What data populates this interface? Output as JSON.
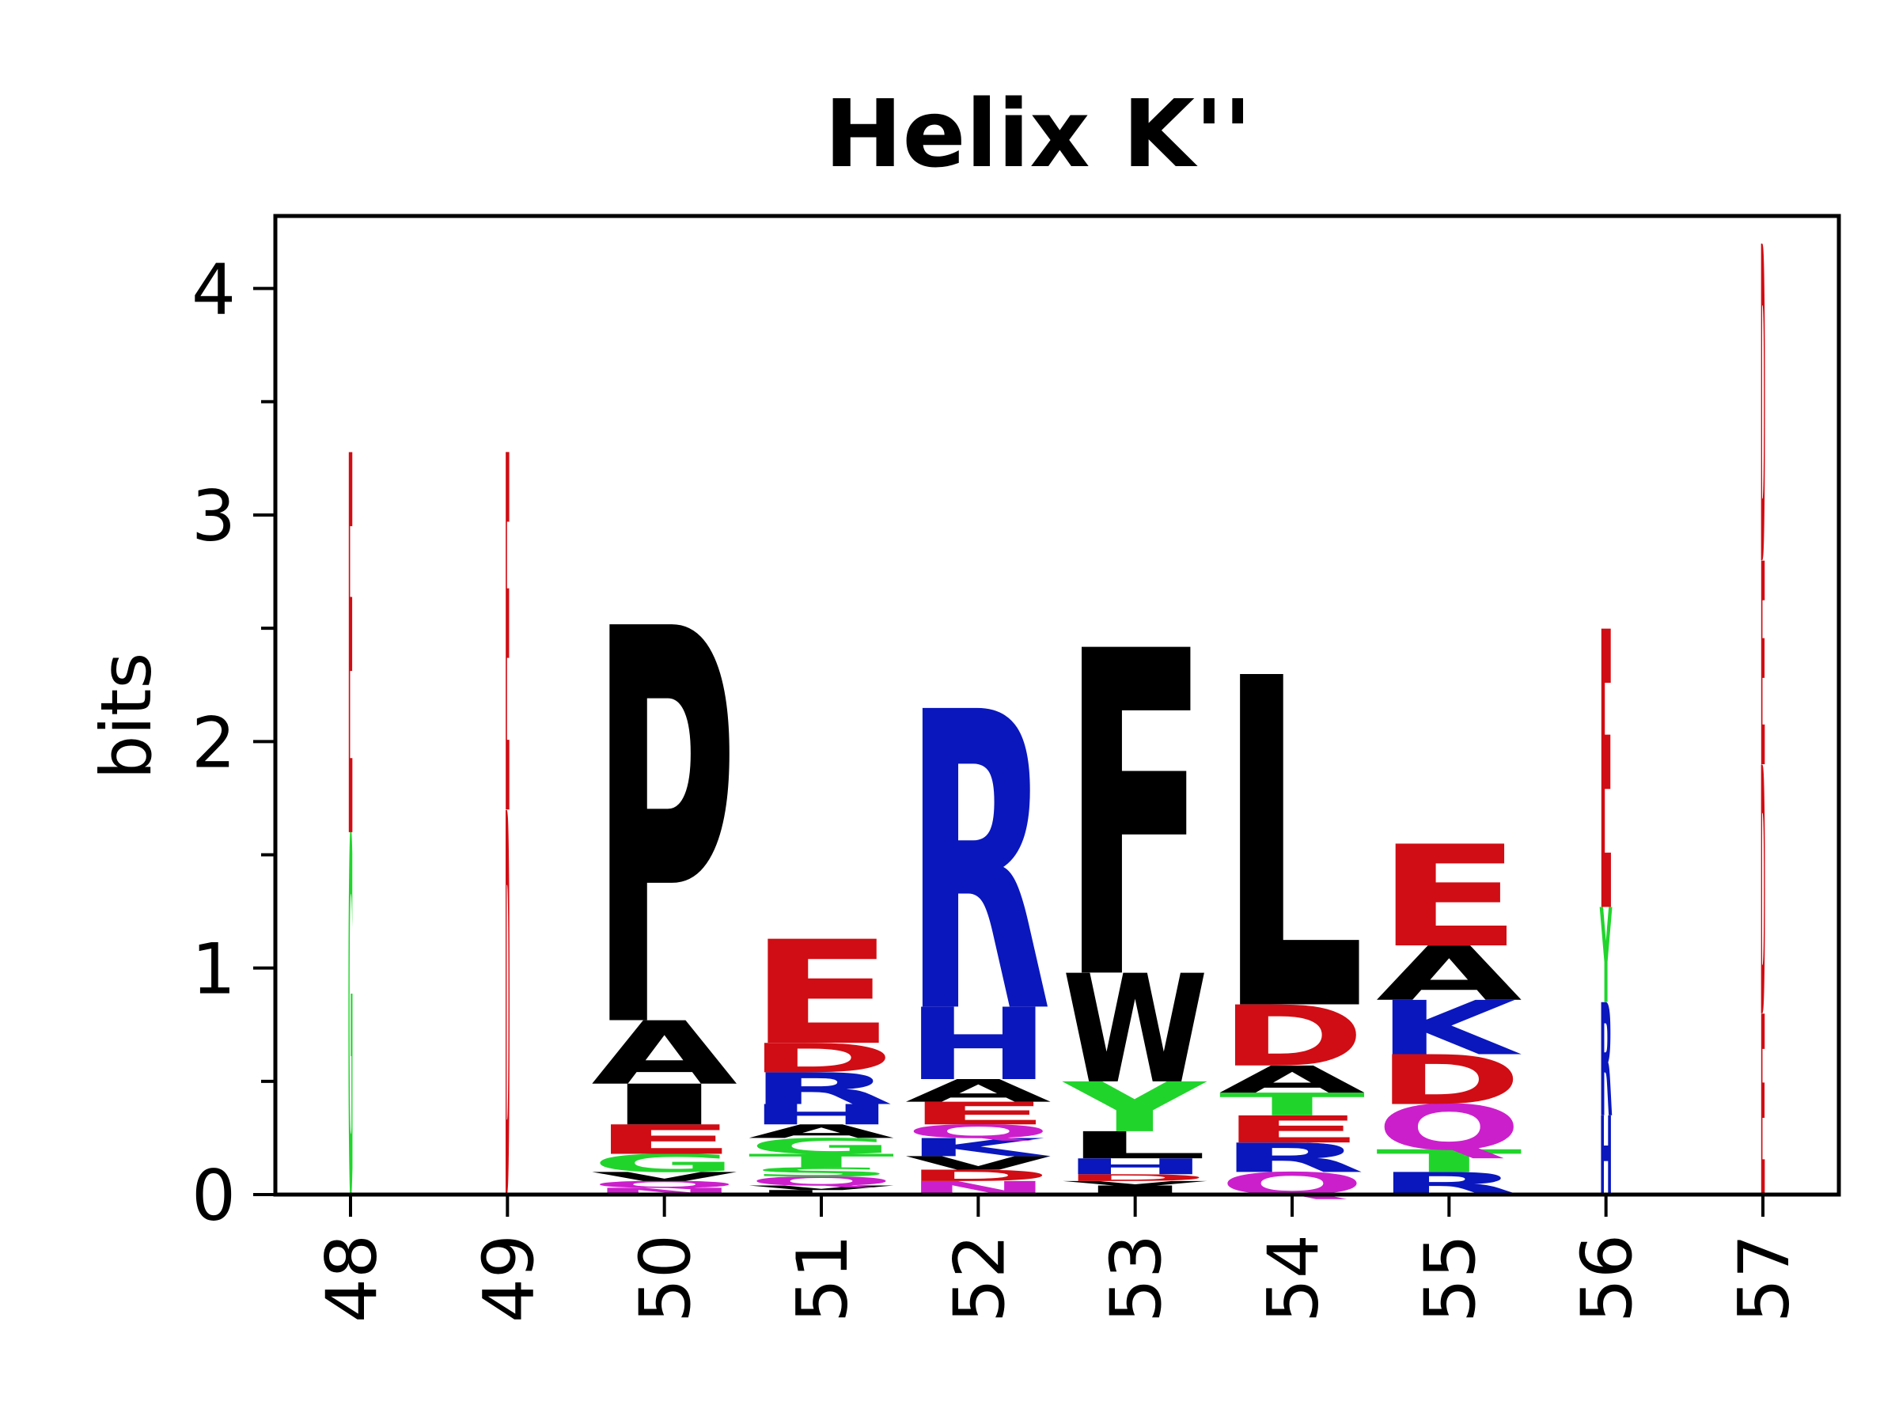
{
  "chart_data": {
    "type": "sequence-logo",
    "title": "Helix K''",
    "ylabel": "bits",
    "xlabel": "",
    "ylim": [
      0,
      4.32
    ],
    "yticks": [
      "0",
      "1",
      "2",
      "3",
      "4"
    ],
    "grid": false,
    "color_scheme": {
      "hydrophobic": "#000000",
      "acidic": "#d00d14",
      "basic": "#0a17bd",
      "polar": "#21d42c",
      "amide": "#cc1fcc"
    },
    "positions": [
      {
        "label": "48",
        "letters": [
          {
            "aa": "G",
            "color": "#21d42c",
            "bits": 1.6
          },
          {
            "aa": "E",
            "color": "#d00d14",
            "bits": 1.68
          }
        ]
      },
      {
        "label": "49",
        "letters": [
          {
            "aa": "D",
            "color": "#d00d14",
            "bits": 1.7
          },
          {
            "aa": "E",
            "color": "#d00d14",
            "bits": 1.58
          }
        ]
      },
      {
        "label": "50",
        "letters": [
          {
            "aa": "N",
            "color": "#cc1fcc",
            "bits": 0.03
          },
          {
            "aa": "Q",
            "color": "#cc1fcc",
            "bits": 0.03
          },
          {
            "aa": "V",
            "color": "#000000",
            "bits": 0.04
          },
          {
            "aa": "G",
            "color": "#21d42c",
            "bits": 0.08
          },
          {
            "aa": "E",
            "color": "#d00d14",
            "bits": 0.13
          },
          {
            "aa": "I",
            "color": "#000000",
            "bits": 0.18
          },
          {
            "aa": "A",
            "color": "#000000",
            "bits": 0.28
          },
          {
            "aa": "P",
            "color": "#000000",
            "bits": 1.75
          }
        ]
      },
      {
        "label": "51",
        "letters": [
          {
            "aa": "L",
            "color": "#000000",
            "bits": 0.02
          },
          {
            "aa": "V",
            "color": "#000000",
            "bits": 0.02
          },
          {
            "aa": "Q",
            "color": "#cc1fcc",
            "bits": 0.04
          },
          {
            "aa": "S",
            "color": "#21d42c",
            "bits": 0.04
          },
          {
            "aa": "T",
            "color": "#21d42c",
            "bits": 0.06
          },
          {
            "aa": "G",
            "color": "#21d42c",
            "bits": 0.07
          },
          {
            "aa": "A",
            "color": "#000000",
            "bits": 0.06
          },
          {
            "aa": "H",
            "color": "#0a17bd",
            "bits": 0.09
          },
          {
            "aa": "R",
            "color": "#0a17bd",
            "bits": 0.14
          },
          {
            "aa": "D",
            "color": "#d00d14",
            "bits": 0.13
          },
          {
            "aa": "E",
            "color": "#d00d14",
            "bits": 0.46
          }
        ]
      },
      {
        "label": "52",
        "letters": [
          {
            "aa": "N",
            "color": "#cc1fcc",
            "bits": 0.06
          },
          {
            "aa": "D",
            "color": "#d00d14",
            "bits": 0.05
          },
          {
            "aa": "V",
            "color": "#000000",
            "bits": 0.06
          },
          {
            "aa": "K",
            "color": "#0a17bd",
            "bits": 0.08
          },
          {
            "aa": "Q",
            "color": "#cc1fcc",
            "bits": 0.06
          },
          {
            "aa": "E",
            "color": "#d00d14",
            "bits": 0.1
          },
          {
            "aa": "A",
            "color": "#000000",
            "bits": 0.1
          },
          {
            "aa": "H",
            "color": "#0a17bd",
            "bits": 0.32
          },
          {
            "aa": "R",
            "color": "#0a17bd",
            "bits": 1.32
          }
        ]
      },
      {
        "label": "53",
        "letters": [
          {
            "aa": "I",
            "color": "#000000",
            "bits": 0.04
          },
          {
            "aa": "V",
            "color": "#000000",
            "bits": 0.02
          },
          {
            "aa": "D",
            "color": "#d00d14",
            "bits": 0.03
          },
          {
            "aa": "H",
            "color": "#0a17bd",
            "bits": 0.07
          },
          {
            "aa": "L",
            "color": "#000000",
            "bits": 0.12
          },
          {
            "aa": "Y",
            "color": "#21d42c",
            "bits": 0.22
          },
          {
            "aa": "W",
            "color": "#000000",
            "bits": 0.48
          },
          {
            "aa": "F",
            "color": "#000000",
            "bits": 1.44
          }
        ]
      },
      {
        "label": "54",
        "letters": [
          {
            "aa": "Q",
            "color": "#cc1fcc",
            "bits": 0.1
          },
          {
            "aa": "R",
            "color": "#0a17bd",
            "bits": 0.13
          },
          {
            "aa": "E",
            "color": "#d00d14",
            "bits": 0.12
          },
          {
            "aa": "T",
            "color": "#21d42c",
            "bits": 0.1
          },
          {
            "aa": "A",
            "color": "#000000",
            "bits": 0.12
          },
          {
            "aa": "D",
            "color": "#d00d14",
            "bits": 0.27
          },
          {
            "aa": "L",
            "color": "#000000",
            "bits": 1.46
          }
        ]
      },
      {
        "label": "55",
        "letters": [
          {
            "aa": "R",
            "color": "#0a17bd",
            "bits": 0.1
          },
          {
            "aa": "T",
            "color": "#21d42c",
            "bits": 0.1
          },
          {
            "aa": "Q",
            "color": "#cc1fcc",
            "bits": 0.2
          },
          {
            "aa": "D",
            "color": "#d00d14",
            "bits": 0.22
          },
          {
            "aa": "K",
            "color": "#0a17bd",
            "bits": 0.24
          },
          {
            "aa": "A",
            "color": "#000000",
            "bits": 0.24
          },
          {
            "aa": "E",
            "color": "#d00d14",
            "bits": 0.45
          }
        ]
      },
      {
        "label": "56",
        "letters": [
          {
            "aa": "H",
            "color": "#0a17bd",
            "bits": 0.35
          },
          {
            "aa": "R",
            "color": "#0a17bd",
            "bits": 0.5
          },
          {
            "aa": "Y",
            "color": "#21d42c",
            "bits": 0.42
          },
          {
            "aa": "E",
            "color": "#d00d14",
            "bits": 1.23
          }
        ]
      },
      {
        "label": "57",
        "letters": [
          {
            "aa": "E",
            "color": "#d00d14",
            "bits": 0.8
          },
          {
            "aa": "D",
            "color": "#d00d14",
            "bits": 1.1
          },
          {
            "aa": "E",
            "color": "#d00d14",
            "bits": 0.9
          },
          {
            "aa": "D",
            "color": "#d00d14",
            "bits": 1.4
          }
        ]
      }
    ]
  }
}
